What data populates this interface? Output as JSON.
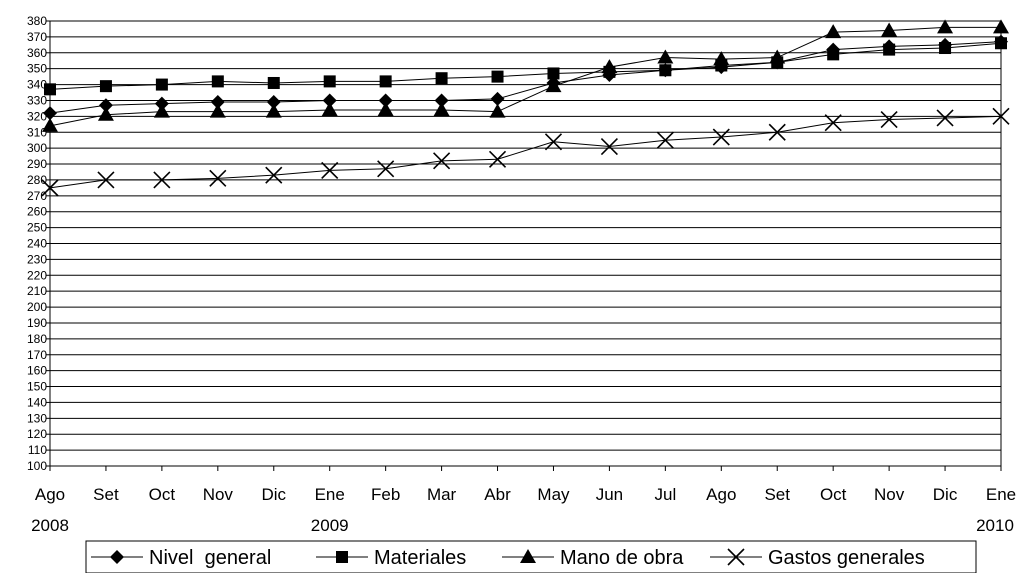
{
  "chart_data": {
    "type": "line",
    "title": "",
    "xlabel": "",
    "ylabel": "",
    "ylim": [
      100,
      380
    ],
    "ytick_step": 10,
    "grid": true,
    "legend_position": "bottom",
    "categories": [
      "Ago",
      "Set",
      "Oct",
      "Nov",
      "Dic",
      "Ene",
      "Feb",
      "Mar",
      "Abr",
      "May",
      "Jun",
      "Jul",
      "Ago",
      "Set",
      "Oct",
      "Nov",
      "Dic",
      "Ene"
    ],
    "year_labels": [
      {
        "index": 0,
        "text": "2008"
      },
      {
        "index": 5,
        "text": "2009"
      },
      {
        "index": 17,
        "text": "2010"
      }
    ],
    "series": [
      {
        "name": "Nivel  general",
        "marker": "diamond",
        "values": [
          322,
          327,
          328,
          329,
          329,
          330,
          330,
          330,
          331,
          341,
          346,
          349,
          351,
          354,
          362,
          364,
          365,
          367
        ]
      },
      {
        "name": "Materiales",
        "marker": "square",
        "values": [
          337,
          339,
          340,
          342,
          341,
          342,
          342,
          344,
          345,
          347,
          348,
          349,
          352,
          354,
          359,
          362,
          363,
          366
        ]
      },
      {
        "name": "Mano de obra",
        "marker": "triangle",
        "values": [
          314,
          321,
          323,
          323,
          323,
          324,
          324,
          324,
          323,
          339,
          351,
          357,
          356,
          357,
          373,
          374,
          376,
          376
        ]
      },
      {
        "name": "Gastos generales",
        "marker": "x",
        "values": [
          275,
          280,
          280,
          281,
          283,
          286,
          287,
          292,
          293,
          304,
          301,
          305,
          307,
          310,
          316,
          318,
          319,
          320
        ]
      }
    ]
  }
}
